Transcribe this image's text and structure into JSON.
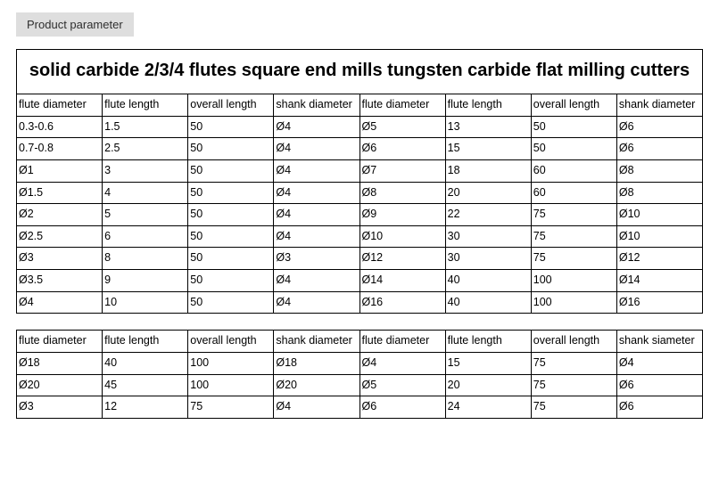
{
  "badge": "Product parameter",
  "table1": {
    "title": "solid carbide 2/3/4 flutes square end mills tungsten carbide flat milling cutters",
    "headers": [
      "flute diameter",
      "flute length",
      "overall length",
      "shank diameter",
      "flute diameter",
      "flute length",
      "overall length",
      "shank diameter"
    ],
    "rows": [
      [
        "0.3-0.6",
        "1.5",
        "50",
        "Ø4",
        "Ø5",
        "13",
        "50",
        "Ø6"
      ],
      [
        "0.7-0.8",
        "2.5",
        "50",
        "Ø4",
        "Ø6",
        "15",
        "50",
        "Ø6"
      ],
      [
        "Ø1",
        "3",
        "50",
        "Ø4",
        "Ø7",
        "18",
        "60",
        "Ø8"
      ],
      [
        "Ø1.5",
        "4",
        "50",
        "Ø4",
        "Ø8",
        "20",
        "60",
        "Ø8"
      ],
      [
        "Ø2",
        "5",
        "50",
        "Ø4",
        "Ø9",
        "22",
        "75",
        "Ø10"
      ],
      [
        "Ø2.5",
        "6",
        "50",
        "Ø4",
        "Ø10",
        "30",
        "75",
        "Ø10"
      ],
      [
        "Ø3",
        "8",
        "50",
        "Ø3",
        "Ø12",
        "30",
        "75",
        "Ø12"
      ],
      [
        "Ø3.5",
        "9",
        "50",
        "Ø4",
        "Ø14",
        "40",
        "100",
        "Ø14"
      ],
      [
        "Ø4",
        "10",
        "50",
        "Ø4",
        "Ø16",
        "40",
        "100",
        "Ø16"
      ]
    ]
  },
  "table2": {
    "headers": [
      "flute diameter",
      "flute length",
      "overall length",
      "shank diameter",
      "flute diameter",
      "flute length",
      "overall length",
      "shank siameter"
    ],
    "rows": [
      [
        "Ø18",
        "40",
        "100",
        "Ø18",
        "Ø4",
        "15",
        "75",
        "Ø4"
      ],
      [
        "Ø20",
        "45",
        "100",
        "Ø20",
        "Ø5",
        "20",
        "75",
        "Ø6"
      ],
      [
        "Ø3",
        "12",
        "75",
        "Ø4",
        "Ø6",
        "24",
        "75",
        "Ø6"
      ]
    ]
  },
  "style": {
    "background": "#ffffff",
    "badge_bg": "#dedede",
    "border_color": "#000000",
    "font_body": 12.5,
    "font_title": 20
  }
}
